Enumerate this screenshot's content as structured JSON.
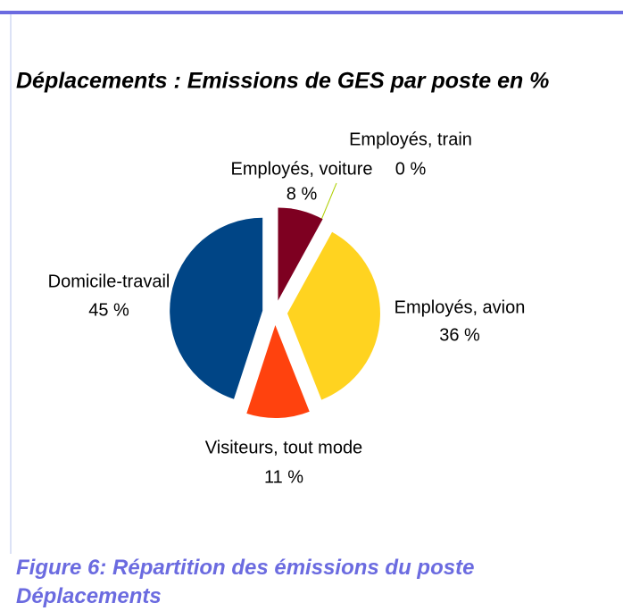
{
  "chart_data": {
    "type": "pie",
    "title": "Déplacements : Emissions de GES par poste en %",
    "categories": [
      "Employés, voiture",
      "Employés, train",
      "Employés, avion",
      "Visiteurs, tout mode",
      "Domicile-travail"
    ],
    "values": [
      8,
      0,
      36,
      11,
      45
    ],
    "value_labels": [
      "8 %",
      "0 %",
      "36 %",
      "11 %",
      "45 %"
    ],
    "colors": [
      "#7e0021",
      "#aecf00",
      "#ffd320",
      "#ff420e",
      "#004586"
    ]
  },
  "caption": "Figure 6: Répartition des émissions du poste Déplacements"
}
